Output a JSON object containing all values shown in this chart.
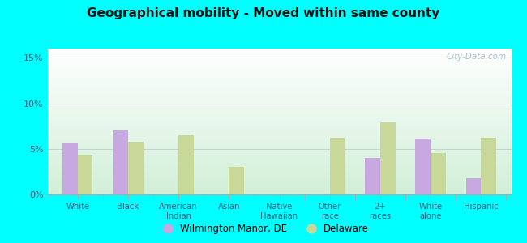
{
  "title": "Geographical mobility - Moved within same county",
  "categories": [
    "White",
    "Black",
    "American\nIndian",
    "Asian",
    "Native\nHawaiian",
    "Other\nrace",
    "2+\nraces",
    "White\nalone",
    "Hispanic"
  ],
  "wilmington": [
    5.7,
    7.0,
    0.0,
    0.0,
    0.0,
    0.0,
    4.0,
    6.1,
    1.8
  ],
  "delaware": [
    4.4,
    5.8,
    6.5,
    3.0,
    0.0,
    6.2,
    7.9,
    4.5,
    6.2
  ],
  "color_wilmington": "#c8a8e0",
  "color_delaware": "#c8d898",
  "ylim": [
    0,
    16
  ],
  "yticks": [
    0,
    5,
    10,
    15
  ],
  "yticklabels": [
    "0%",
    "5%",
    "10%",
    "15%"
  ],
  "outer_background": "#00ffff",
  "legend_wilmington": "Wilmington Manor, DE",
  "legend_delaware": "Delaware",
  "watermark": "City-Data.com"
}
